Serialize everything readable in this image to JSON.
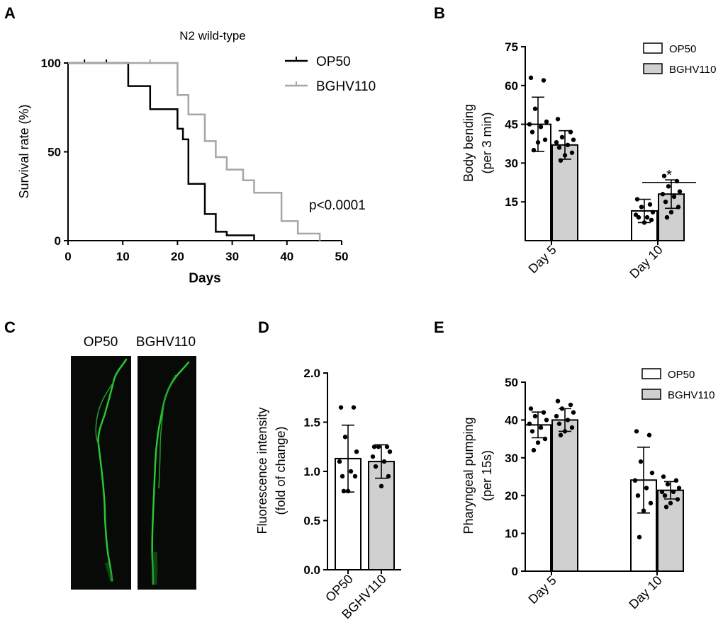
{
  "colors": {
    "op50": "#000000",
    "bghv110_line": "#a6a6a6",
    "bghv110_fill": "#d0d0d0",
    "bar_white": "#ffffff",
    "micro_bg": "#080a07",
    "micro_worm": "#28c832"
  },
  "panels": {
    "A": {
      "letter": "A",
      "title": "N2 wild-type",
      "xlabel": "Days",
      "ylabel": "Survival rate (%)",
      "p_value": "p<0.0001",
      "legend": [
        "OP50",
        "BGHV110"
      ]
    },
    "B": {
      "letter": "B",
      "ylabel_line1": "Body bending",
      "ylabel_line2": "(per 3 min)",
      "legend": [
        "OP50",
        "BGHV110"
      ],
      "significance": "*"
    },
    "C": {
      "letter": "C",
      "label_left": "OP50",
      "label_right": "BGHV110"
    },
    "D": {
      "letter": "D",
      "ylabel_line1": "Fluorescence intensity",
      "ylabel_line2": "(fold of change)"
    },
    "E": {
      "letter": "E",
      "ylabel_line1": "Pharyngeal pumping",
      "ylabel_line2": "(per 15s)",
      "legend": [
        "OP50",
        "BGHV110"
      ]
    }
  },
  "chart_data": [
    {
      "id": "A",
      "type": "line",
      "title": "N2 wild-type",
      "xlabel": "Days",
      "ylabel": "Survival rate (%)",
      "xlim": [
        0,
        50
      ],
      "ylim": [
        0,
        100
      ],
      "xticks": [
        "0",
        "10",
        "20",
        "30",
        "40",
        "50"
      ],
      "yticks": [
        "0",
        "50",
        "100"
      ],
      "series": [
        {
          "name": "OP50",
          "steps": [
            [
              0,
              100
            ],
            [
              11,
              100
            ],
            [
              11,
              87
            ],
            [
              15,
              87
            ],
            [
              15,
              74
            ],
            [
              20,
              74
            ],
            [
              20,
              63
            ],
            [
              21,
              63
            ],
            [
              21,
              57
            ],
            [
              22,
              57
            ],
            [
              22,
              32
            ],
            [
              25,
              32
            ],
            [
              25,
              15
            ],
            [
              27,
              15
            ],
            [
              27,
              5
            ],
            [
              29,
              5
            ],
            [
              29,
              3
            ],
            [
              34,
              3
            ],
            [
              34,
              0
            ]
          ],
          "censor_x": [
            3,
            7
          ]
        },
        {
          "name": "BGHV110",
          "steps": [
            [
              0,
              100
            ],
            [
              20,
              100
            ],
            [
              20,
              82
            ],
            [
              22,
              82
            ],
            [
              22,
              71
            ],
            [
              25,
              71
            ],
            [
              25,
              56
            ],
            [
              27,
              56
            ],
            [
              27,
              47
            ],
            [
              29,
              47
            ],
            [
              29,
              40
            ],
            [
              32,
              40
            ],
            [
              32,
              34
            ],
            [
              34,
              34
            ],
            [
              34,
              27
            ],
            [
              35,
              27
            ],
            [
              35,
              27
            ],
            [
              39,
              27
            ],
            [
              39,
              11
            ],
            [
              42,
              11
            ],
            [
              42,
              4
            ],
            [
              46,
              4
            ],
            [
              46,
              0
            ]
          ],
          "censor_x": [
            15
          ]
        }
      ],
      "annotation": "p<0.0001"
    },
    {
      "id": "B",
      "type": "bar",
      "ylabel": "Body bending (per 3 min)",
      "ylim": [
        0,
        75
      ],
      "yticks": [
        "15",
        "30",
        "45",
        "60",
        "75"
      ],
      "categories": [
        "Day 5",
        "Day 10"
      ],
      "series": [
        {
          "name": "OP50",
          "values": [
            45,
            11.5
          ],
          "sd": [
            10.5,
            4.5
          ],
          "points": [
            [
              63,
              62,
              51,
              46,
              45,
              44,
              42,
              39,
              38,
              35
            ],
            [
              16,
              14,
              13,
              11,
              10,
              9,
              9,
              8,
              7
            ]
          ]
        },
        {
          "name": "BGHV110",
          "values": [
            37,
            18
          ],
          "sd": [
            5.5,
            5.5
          ],
          "points": [
            [
              47,
              42,
              40,
              39,
              38,
              37,
              36,
              34,
              33,
              31
            ],
            [
              25,
              23,
              21,
              19,
              18,
              17,
              15,
              13,
              11,
              9
            ]
          ]
        }
      ],
      "significance": {
        "category": "Day 10",
        "label": "*"
      }
    },
    {
      "id": "D",
      "type": "bar",
      "ylabel": "Fluorescence intensity (fold of change)",
      "ylim": [
        0,
        2.0
      ],
      "yticks": [
        "0.0",
        "0.5",
        "1.0",
        "1.5",
        "2.0"
      ],
      "categories": [
        "OP50",
        "BGHV110"
      ],
      "values": [
        1.13,
        1.1
      ],
      "sd": [
        0.34,
        0.17
      ],
      "points": [
        [
          1.65,
          1.65,
          1.35,
          1.2,
          1.1,
          1.0,
          0.95,
          0.95,
          0.8,
          0.8
        ],
        [
          1.25,
          1.25,
          1.25,
          1.2,
          1.15,
          1.1,
          1.05,
          0.95,
          0.85
        ]
      ]
    },
    {
      "id": "E",
      "type": "bar",
      "ylabel": "Pharyngeal pumping (per 15s)",
      "ylim": [
        0,
        50
      ],
      "yticks": [
        "0",
        "10",
        "20",
        "30",
        "40",
        "50"
      ],
      "categories": [
        "Day 5",
        "Day 10"
      ],
      "series": [
        {
          "name": "OP50",
          "values": [
            38.7,
            24.1
          ],
          "sd": [
            3.4,
            8.7
          ],
          "points": [
            [
              43,
              42,
              41,
              40,
              39,
              38,
              37,
              35,
              34,
              32
            ],
            [
              37,
              36,
              29,
              26,
              24,
              22,
              20,
              18,
              16,
              9
            ]
          ]
        },
        {
          "name": "BGHV110",
          "values": [
            40.0,
            21.4
          ],
          "sd": [
            3.0,
            2.3
          ],
          "points": [
            [
              45,
              44,
              43,
              42,
              41,
              40,
              39,
              38,
              37,
              36
            ],
            [
              25,
              24,
              23,
              22,
              21,
              21,
              20,
              19,
              18,
              17
            ]
          ]
        }
      ]
    }
  ]
}
